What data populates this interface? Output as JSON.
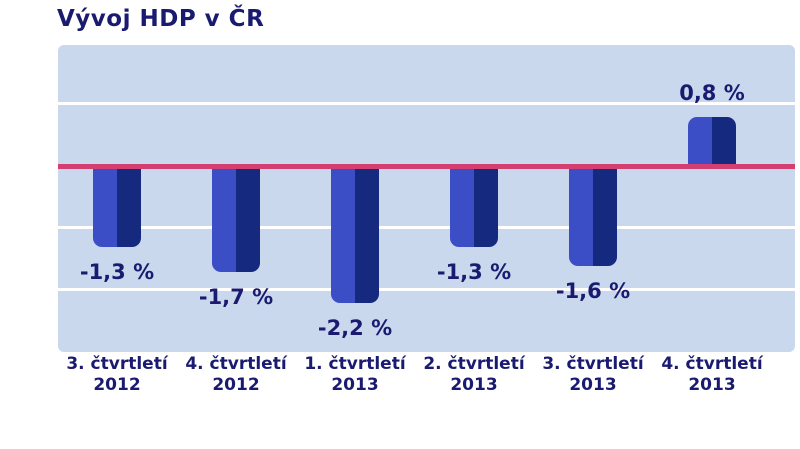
{
  "title": "Vývoj HDP v ČR",
  "colors": {
    "text": "#1a1b70",
    "plot_bg": "#c9d8ec",
    "gridline": "#ffffff",
    "zero_line": "#d43f72",
    "bar_light": "#3b4ec6",
    "bar_dark": "#15297f"
  },
  "chart_data": {
    "type": "bar",
    "title": "Vývoj HDP v ČR",
    "xlabel": "",
    "ylabel": "",
    "ylim": [
      -3,
      2
    ],
    "grid": true,
    "gridline_step_pct": 1,
    "legend": "none",
    "zero_line": true,
    "categories": [
      {
        "quarter": "3. čtvrtletí",
        "year": "2012"
      },
      {
        "quarter": "4. čtvrtletí",
        "year": "2012"
      },
      {
        "quarter": "1. čtvrtletí",
        "year": "2013"
      },
      {
        "quarter": "2. čtvrtletí",
        "year": "2013"
      },
      {
        "quarter": "3. čtvrtletí",
        "year": "2013"
      },
      {
        "quarter": "4. čtvrtletí",
        "year": "2013"
      }
    ],
    "values": [
      -1.3,
      -1.7,
      -2.2,
      -1.3,
      -1.6,
      0.8
    ],
    "value_labels": [
      "-1,3 %",
      "-1,7 %",
      "-2,2 %",
      "-1,3 %",
      "-1,6 %",
      "0,8 %"
    ],
    "unit": "%"
  }
}
